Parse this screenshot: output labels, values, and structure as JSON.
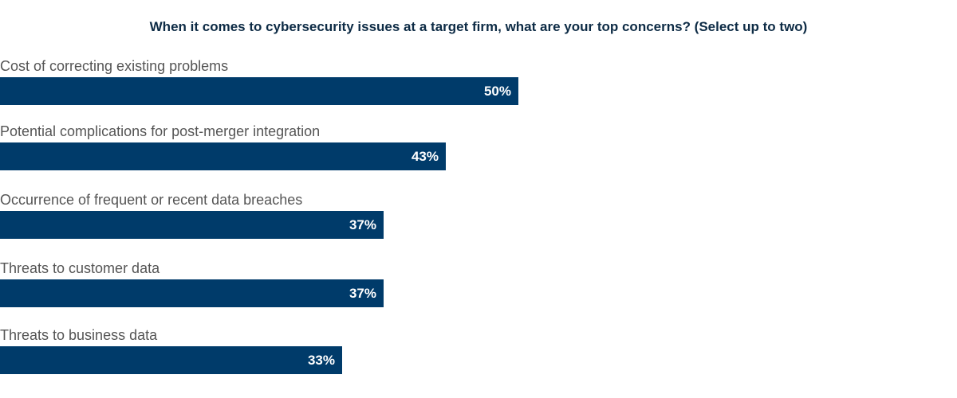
{
  "chart_data": {
    "type": "bar",
    "orientation": "horizontal",
    "title": "When it comes to cybersecurity issues at a target firm, what are your top concerns? (Select up to two)",
    "categories": [
      "Cost of correcting existing problems",
      "Potential complications for post-merger integration",
      "Occurrence of frequent or recent data breaches",
      "Threats to customer data",
      "Threats to business data"
    ],
    "values": [
      50,
      43,
      37,
      37,
      33
    ],
    "labels": [
      "50%",
      "43%",
      "37%",
      "37%",
      "33%"
    ],
    "unit": "%",
    "grid": false,
    "bar_color": "#003b6a"
  }
}
